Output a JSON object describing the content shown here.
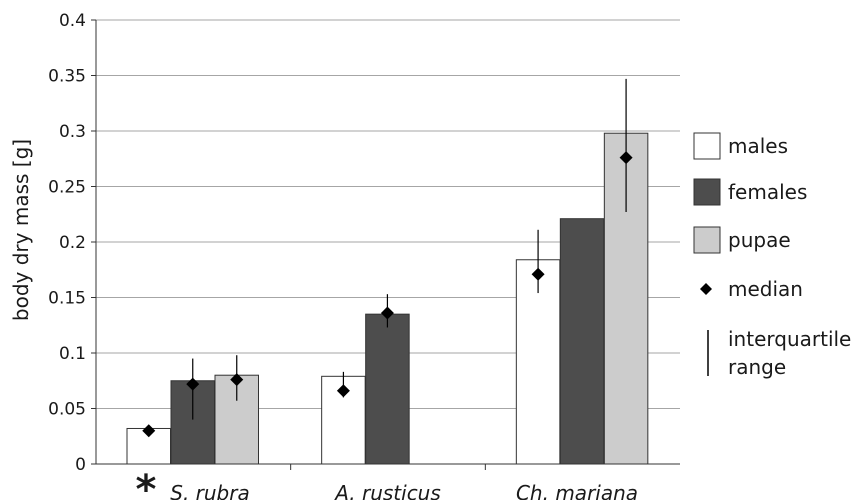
{
  "chart_data": {
    "type": "bar",
    "ylabel": "body dry mass [g]",
    "ylim": [
      0,
      0.4
    ],
    "yticks": [
      "0",
      "0.05",
      "0.1",
      "0.15",
      "0.2",
      "0.25",
      "0.3",
      "0.35",
      "0.4"
    ],
    "grid": true,
    "categories": [
      "S. rubra",
      "A. rusticus",
      "Ch. mariana"
    ],
    "category_marks": [
      "*",
      "",
      ""
    ],
    "series": [
      {
        "name": "males",
        "color": "#ffffff",
        "values": [
          0.032,
          0.079,
          0.184
        ],
        "medians": [
          0.03,
          0.066,
          0.171
        ],
        "iqr": [
          [
            0.027,
            0.034
          ],
          [
            0.06,
            0.083
          ],
          [
            0.154,
            0.211
          ]
        ]
      },
      {
        "name": "females",
        "color": "#4d4d4d",
        "values": [
          0.075,
          0.135,
          0.221
        ],
        "medians": [
          0.072,
          0.136,
          null
        ],
        "iqr": [
          [
            0.04,
            0.095
          ],
          [
            0.123,
            0.153
          ],
          null
        ]
      },
      {
        "name": "pupae",
        "color": "#cccccc",
        "values": [
          0.08,
          null,
          0.298
        ],
        "medians": [
          0.076,
          null,
          0.276
        ],
        "iqr": [
          [
            0.057,
            0.098
          ],
          null,
          [
            0.227,
            0.347
          ]
        ]
      }
    ],
    "legend": {
      "position": "right",
      "median_label": "median",
      "iqr_label_line1": "interquartile",
      "iqr_label_line2": "range"
    }
  }
}
